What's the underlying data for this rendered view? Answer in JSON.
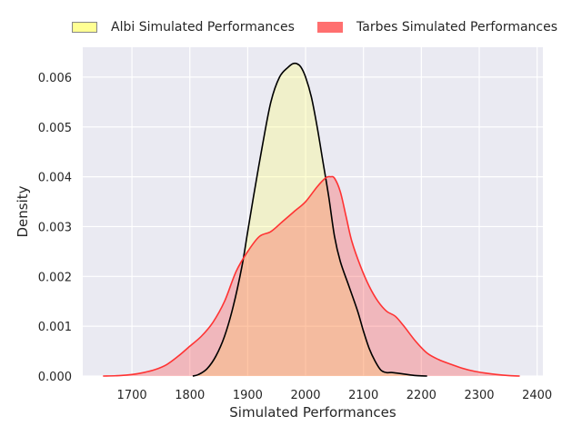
{
  "chart_data": {
    "type": "area",
    "title": "",
    "xlabel": "Simulated Performances",
    "ylabel": "Density",
    "xlim": [
      1615,
      2410
    ],
    "ylim": [
      0,
      0.0066
    ],
    "xticks": [
      1700,
      1800,
      1900,
      2000,
      2100,
      2200,
      2300,
      2400
    ],
    "yticks": [
      0.0,
      0.001,
      0.002,
      0.003,
      0.004,
      0.005,
      0.006
    ],
    "xtick_labels": [
      "1700",
      "1800",
      "1900",
      "2000",
      "2100",
      "2200",
      "2300",
      "2400"
    ],
    "ytick_labels": [
      "0.000",
      "0.001",
      "0.002",
      "0.003",
      "0.004",
      "0.005",
      "0.006"
    ],
    "grid": true,
    "legend_position": "top-center",
    "series": [
      {
        "name": "Albi Simulated Performances",
        "fill_color": "#ffff66",
        "line_color": "#000000",
        "x": [
          1805,
          1815,
          1830,
          1845,
          1860,
          1875,
          1890,
          1900,
          1910,
          1925,
          1940,
          1955,
          1970,
          1978,
          1985,
          1992,
          2000,
          2010,
          2020,
          2030,
          2040,
          2050,
          2060,
          2075,
          2090,
          2100,
          2110,
          2120,
          2130,
          2140,
          2150,
          2170,
          2190,
          2210
        ],
        "y": [
          0.0,
          3e-05,
          0.00015,
          0.0004,
          0.0008,
          0.0014,
          0.0022,
          0.0029,
          0.0036,
          0.0046,
          0.0055,
          0.006,
          0.0062,
          0.00627,
          0.00627,
          0.0062,
          0.006,
          0.0056,
          0.005,
          0.0043,
          0.0036,
          0.0028,
          0.0023,
          0.0018,
          0.0013,
          0.0009,
          0.00055,
          0.0003,
          0.00012,
          7e-05,
          7e-05,
          4e-05,
          1e-05,
          0.0
        ]
      },
      {
        "name": "Tarbes Simulated Performances",
        "fill_color": "#ff3333",
        "line_color": "#ff3333",
        "x": [
          1650,
          1680,
          1700,
          1720,
          1740,
          1760,
          1780,
          1800,
          1820,
          1840,
          1860,
          1880,
          1900,
          1920,
          1940,
          1960,
          1980,
          2000,
          2020,
          2035,
          2043,
          2050,
          2060,
          2070,
          2080,
          2095,
          2110,
          2125,
          2140,
          2155,
          2170,
          2190,
          2210,
          2230,
          2250,
          2270,
          2290,
          2310,
          2330,
          2350,
          2370
        ],
        "y": [
          0.0,
          1e-05,
          3e-05,
          7e-05,
          0.00013,
          0.00023,
          0.0004,
          0.0006,
          0.0008,
          0.00108,
          0.0015,
          0.0021,
          0.0025,
          0.0028,
          0.0029,
          0.0031,
          0.0033,
          0.0035,
          0.0038,
          0.00398,
          0.004,
          0.00397,
          0.0037,
          0.0032,
          0.0027,
          0.0022,
          0.0018,
          0.0015,
          0.0013,
          0.0012,
          0.001,
          0.0007,
          0.00046,
          0.00033,
          0.00024,
          0.00016,
          0.0001,
          6e-05,
          3e-05,
          1e-05,
          0.0
        ]
      }
    ]
  }
}
